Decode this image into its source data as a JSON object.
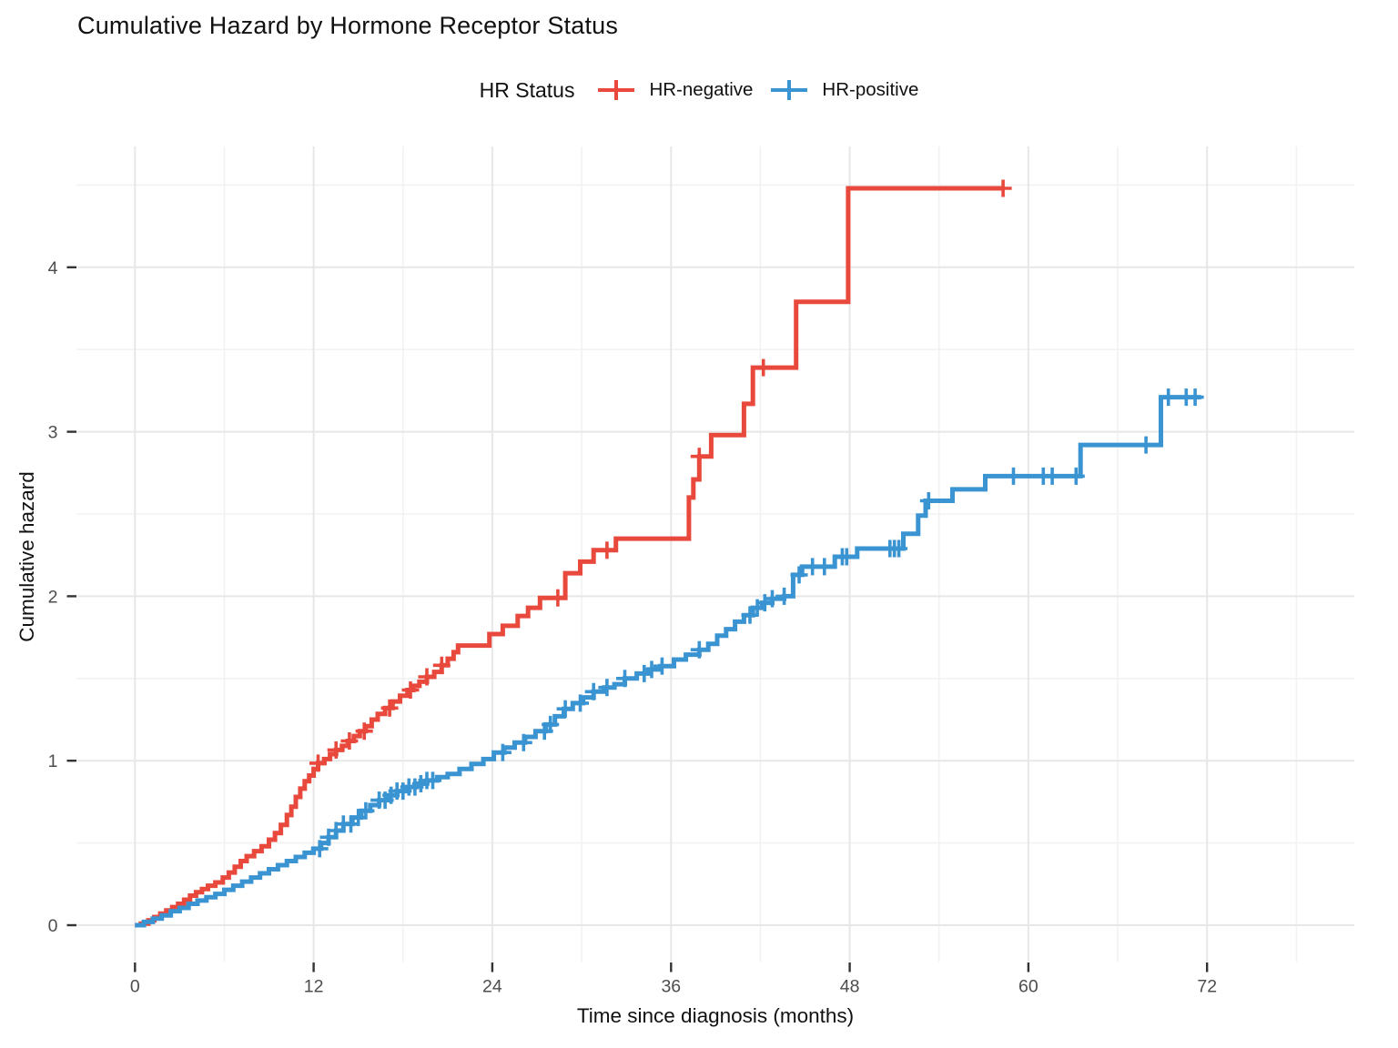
{
  "page": {
    "background": "#FFFFFF"
  },
  "chart_data": {
    "type": "line",
    "subtype": "step_cumulative_hazard_with_censor_marks",
    "title": "Cumulative Hazard by Hormone Receptor Status",
    "xlabel": "Time since diagnosis (months)",
    "ylabel": "Cumulative hazard",
    "legend": {
      "title": "HR Status",
      "position": "top"
    },
    "x_ticks": [
      0,
      12,
      24,
      36,
      48,
      60,
      72
    ],
    "x_minor_ticks": [
      6,
      18,
      30,
      42,
      54,
      66,
      78
    ],
    "y_ticks": [
      0,
      1,
      2,
      3,
      4
    ],
    "y_minor_ticks": [
      0.5,
      1.5,
      2.5,
      3.5,
      4.5
    ],
    "xlim": [
      0,
      78
    ],
    "ylim": [
      0,
      4.73
    ],
    "grid": true,
    "colors": {
      "hr_negative": "#E8493C",
      "hr_positive": "#3B94D2",
      "grid_major": "#E7E7E7",
      "grid_minor": "#F2F2F2",
      "tick": "#333333",
      "tick_label": "#4D4D4D",
      "text": "#111111"
    },
    "series": [
      {
        "name": "HR-negative",
        "color": "#E8493C",
        "end_time": 58.4,
        "steps": [
          [
            0,
            0
          ],
          [
            0.4,
            0.01
          ],
          [
            0.9,
            0.03
          ],
          [
            1.3,
            0.05
          ],
          [
            1.7,
            0.07
          ],
          [
            2.1,
            0.09
          ],
          [
            2.5,
            0.11
          ],
          [
            2.9,
            0.13
          ],
          [
            3.3,
            0.155
          ],
          [
            3.7,
            0.18
          ],
          [
            4.1,
            0.2
          ],
          [
            4.5,
            0.22
          ],
          [
            4.9,
            0.24
          ],
          [
            5.4,
            0.26
          ],
          [
            5.9,
            0.29
          ],
          [
            6.3,
            0.32
          ],
          [
            6.7,
            0.355
          ],
          [
            7.1,
            0.39
          ],
          [
            7.5,
            0.42
          ],
          [
            8,
            0.45
          ],
          [
            8.5,
            0.48
          ],
          [
            9,
            0.52
          ],
          [
            9.4,
            0.56
          ],
          [
            9.8,
            0.61
          ],
          [
            10.2,
            0.67
          ],
          [
            10.5,
            0.72
          ],
          [
            10.8,
            0.78
          ],
          [
            11.1,
            0.83
          ],
          [
            11.4,
            0.875
          ],
          [
            11.7,
            0.91
          ],
          [
            12,
            0.95
          ],
          [
            12.3,
            0.985
          ],
          [
            12.7,
            1.01
          ],
          [
            13.1,
            1.04
          ],
          [
            13.5,
            1.065
          ],
          [
            13.9,
            1.09
          ],
          [
            14.3,
            1.12
          ],
          [
            14.7,
            1.15
          ],
          [
            15.1,
            1.18
          ],
          [
            15.5,
            1.21
          ],
          [
            15.9,
            1.25
          ],
          [
            16.3,
            1.285
          ],
          [
            16.8,
            1.32
          ],
          [
            17.3,
            1.36
          ],
          [
            17.8,
            1.395
          ],
          [
            18.3,
            1.43
          ],
          [
            18.7,
            1.455
          ],
          [
            19.1,
            1.48
          ],
          [
            19.6,
            1.51
          ],
          [
            20.1,
            1.54
          ],
          [
            20.6,
            1.58
          ],
          [
            21,
            1.62
          ],
          [
            21.4,
            1.66
          ],
          [
            21.7,
            1.7
          ],
          [
            23.8,
            1.77
          ],
          [
            24.7,
            1.82
          ],
          [
            25.7,
            1.88
          ],
          [
            26.4,
            1.93
          ],
          [
            27.2,
            1.99
          ],
          [
            28.9,
            2.14
          ],
          [
            29.9,
            2.21
          ],
          [
            30.8,
            2.28
          ],
          [
            32.3,
            2.35
          ],
          [
            37.2,
            2.6
          ],
          [
            37.5,
            2.71
          ],
          [
            37.9,
            2.85
          ],
          [
            38.7,
            2.98
          ],
          [
            40.9,
            3.17
          ],
          [
            41.5,
            3.39
          ],
          [
            44.4,
            3.79
          ],
          [
            47.9,
            4.48
          ]
        ],
        "censor_times": [
          12.3,
          13.5,
          14.4,
          15.4,
          17.1,
          18.5,
          19.6,
          20.6,
          28.4,
          31.7,
          37.9,
          42.2,
          58.3
        ]
      },
      {
        "name": "HR-positive",
        "color": "#3B94D2",
        "end_time": 71.6,
        "steps": [
          [
            0,
            0
          ],
          [
            0.6,
            0.02
          ],
          [
            1.2,
            0.04
          ],
          [
            1.8,
            0.06
          ],
          [
            2.4,
            0.085
          ],
          [
            3,
            0.105
          ],
          [
            3.6,
            0.13
          ],
          [
            4.2,
            0.15
          ],
          [
            4.8,
            0.17
          ],
          [
            5.4,
            0.19
          ],
          [
            6,
            0.215
          ],
          [
            6.6,
            0.24
          ],
          [
            7.2,
            0.265
          ],
          [
            7.8,
            0.29
          ],
          [
            8.4,
            0.315
          ],
          [
            9,
            0.34
          ],
          [
            9.6,
            0.365
          ],
          [
            10.2,
            0.39
          ],
          [
            10.8,
            0.415
          ],
          [
            11.4,
            0.44
          ],
          [
            12,
            0.465
          ],
          [
            12.5,
            0.5
          ],
          [
            13,
            0.535
          ],
          [
            13.5,
            0.575
          ],
          [
            14,
            0.615
          ],
          [
            14.6,
            0.655
          ],
          [
            15.2,
            0.695
          ],
          [
            15.8,
            0.73
          ],
          [
            16.4,
            0.76
          ],
          [
            17,
            0.79
          ],
          [
            17.6,
            0.815
          ],
          [
            18.2,
            0.84
          ],
          [
            18.9,
            0.86
          ],
          [
            19.6,
            0.88
          ],
          [
            20.3,
            0.9
          ],
          [
            21,
            0.92
          ],
          [
            21.8,
            0.95
          ],
          [
            22.6,
            0.98
          ],
          [
            23.4,
            1.01
          ],
          [
            24.1,
            1.05
          ],
          [
            24.8,
            1.08
          ],
          [
            25.5,
            1.11
          ],
          [
            26.2,
            1.145
          ],
          [
            26.9,
            1.18
          ],
          [
            27.6,
            1.22
          ],
          [
            28.2,
            1.27
          ],
          [
            28.8,
            1.315
          ],
          [
            29.4,
            1.35
          ],
          [
            30.1,
            1.385
          ],
          [
            30.8,
            1.42
          ],
          [
            31.5,
            1.445
          ],
          [
            32.2,
            1.465
          ],
          [
            32.9,
            1.5
          ],
          [
            33.7,
            1.53
          ],
          [
            34.5,
            1.555
          ],
          [
            35.3,
            1.575
          ],
          [
            36.2,
            1.615
          ],
          [
            37,
            1.645
          ],
          [
            37.9,
            1.675
          ],
          [
            38.5,
            1.71
          ],
          [
            39.1,
            1.76
          ],
          [
            39.7,
            1.8
          ],
          [
            40.3,
            1.845
          ],
          [
            40.9,
            1.885
          ],
          [
            41.5,
            1.93
          ],
          [
            42.1,
            1.96
          ],
          [
            42.8,
            1.985
          ],
          [
            43.6,
            2
          ],
          [
            44.2,
            2.13
          ],
          [
            44.8,
            2.18
          ],
          [
            47,
            2.24
          ],
          [
            48.5,
            2.29
          ],
          [
            51.6,
            2.38
          ],
          [
            52.6,
            2.49
          ],
          [
            53.1,
            2.58
          ],
          [
            54.9,
            2.65
          ],
          [
            57.1,
            2.73
          ],
          [
            63.5,
            2.92
          ],
          [
            68.9,
            3.21
          ]
        ],
        "censor_times": [
          12.4,
          13,
          13.5,
          14,
          14.5,
          15,
          15.5,
          16.4,
          16.8,
          17.2,
          17.6,
          18,
          18.4,
          18.8,
          19.2,
          19.6,
          20,
          24.7,
          26.1,
          27.5,
          27.9,
          28.9,
          29.9,
          30.8,
          31.7,
          32.9,
          34.2,
          34.7,
          35.4,
          37.9,
          41.3,
          41.8,
          42.3,
          42.8,
          43.6,
          44.6,
          45.5,
          46.3,
          47.5,
          47.8,
          50.7,
          51,
          51.3,
          53.3,
          59,
          61,
          61.6,
          63.2,
          67.9,
          69.4,
          70.6,
          71.2
        ]
      }
    ]
  }
}
